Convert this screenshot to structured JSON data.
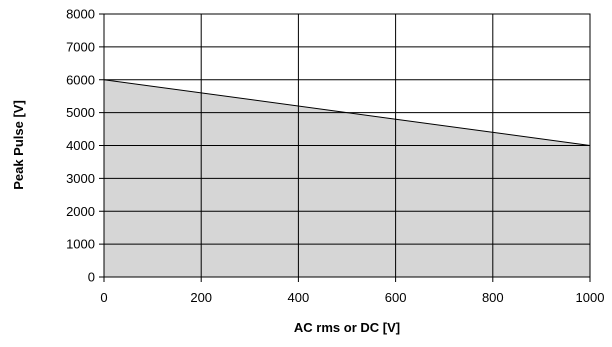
{
  "chart_data": {
    "type": "area",
    "title": "",
    "xlabel": "AC rms or DC [V]",
    "ylabel": "Peak Pulse [V]",
    "xlim": [
      0,
      1000
    ],
    "ylim": [
      0,
      8000
    ],
    "x_ticks": [
      0,
      200,
      400,
      600,
      800,
      1000
    ],
    "y_ticks": [
      0,
      1000,
      2000,
      3000,
      4000,
      5000,
      6000,
      7000,
      8000
    ],
    "grid": "on (above the filled area)",
    "series": [
      {
        "x": [
          0,
          1000
        ],
        "y": [
          6000,
          4000
        ]
      }
    ],
    "colors": {
      "fill": "#d6d6d6",
      "line": "#000000",
      "grid": "#000000"
    }
  }
}
